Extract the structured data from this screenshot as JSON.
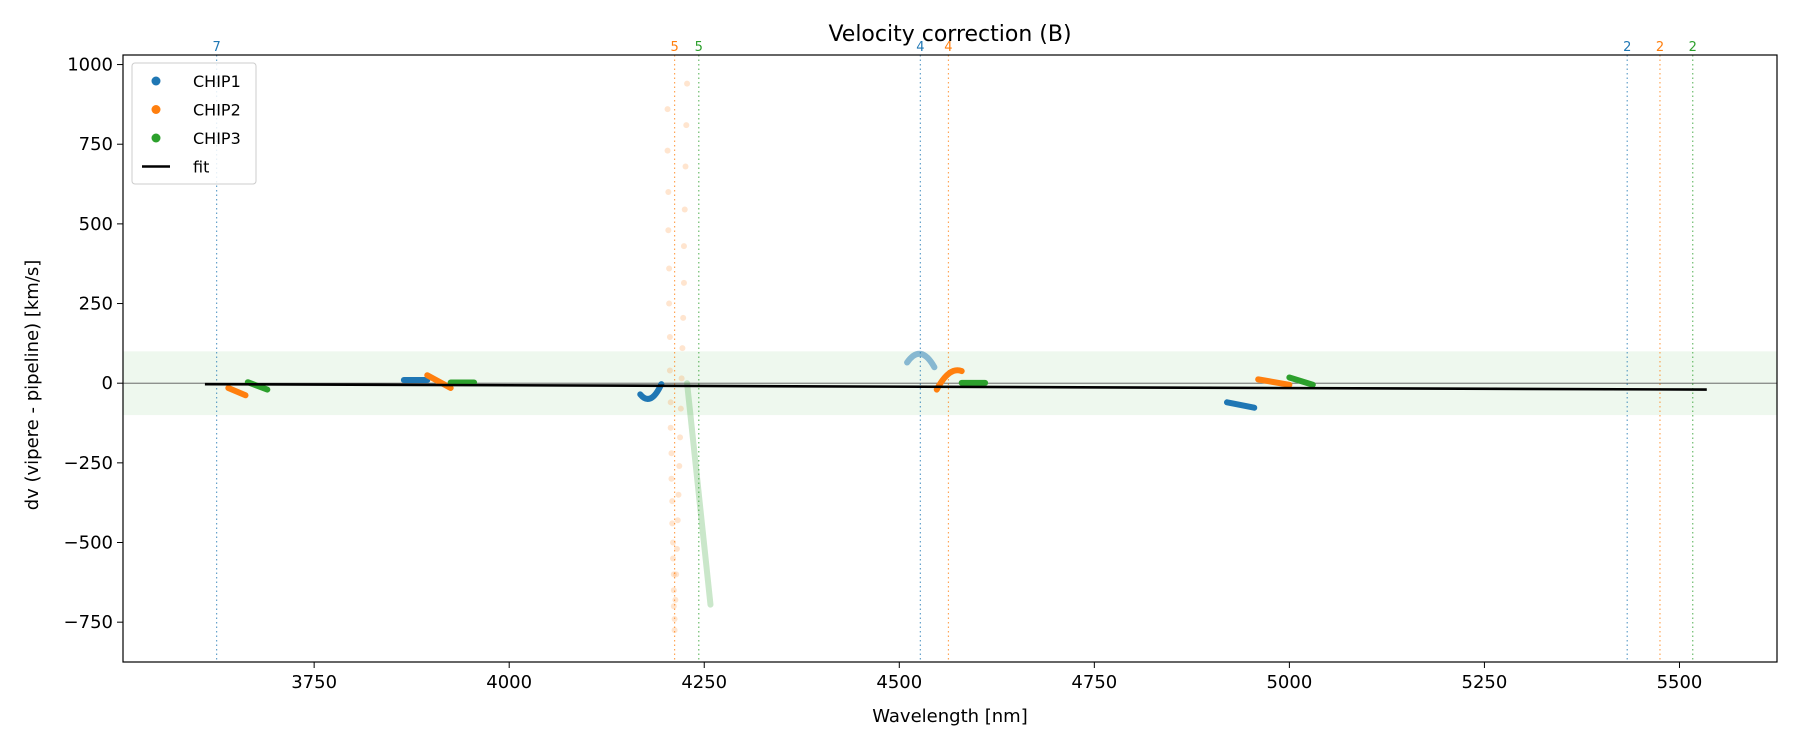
{
  "chart_data": {
    "type": "scatter",
    "title": "Velocity correction (B)",
    "xlabel": "Wavelength [nm]",
    "ylabel": "dv (vipere - pipeline) [km/s]",
    "xlim": [
      3505,
      5625
    ],
    "ylim": [
      -875,
      1030
    ],
    "xticks": [
      3750,
      4000,
      4250,
      4500,
      4750,
      5000,
      5250,
      5500
    ],
    "yticks": [
      -750,
      -500,
      -250,
      0,
      250,
      500,
      750,
      1000
    ],
    "xtick_labels": [
      "3750",
      "4000",
      "4250",
      "4500",
      "4750",
      "5000",
      "5250",
      "5500"
    ],
    "ytick_labels": [
      "−750",
      "−500",
      "−250",
      "0",
      "250",
      "500",
      "750",
      "1000"
    ],
    "band": [
      -100,
      100
    ],
    "band_color": "#2ca02c",
    "zero_line": 0,
    "legend_position": "upper-left",
    "colors": {
      "CHIP1": "#1f77b4",
      "CHIP2": "#ff7f0e",
      "CHIP3": "#2ca02c",
      "fit": "#000000"
    },
    "legend": [
      {
        "label": "CHIP1",
        "kind": "point",
        "series": "CHIP1"
      },
      {
        "label": "CHIP2",
        "kind": "point",
        "series": "CHIP2"
      },
      {
        "label": "CHIP3",
        "kind": "point",
        "series": "CHIP3"
      },
      {
        "label": "fit",
        "kind": "line",
        "series": "fit"
      }
    ],
    "fit": {
      "x": [
        3610,
        5535
      ],
      "y": [
        -3,
        -20
      ]
    },
    "segments": [
      {
        "series": "CHIP2",
        "alpha": 1,
        "x0": 3640,
        "y0": -15,
        "x1": 3662,
        "y1": -38,
        "curve": 0
      },
      {
        "series": "CHIP3",
        "alpha": 1,
        "x0": 3665,
        "y0": 3,
        "x1": 3690,
        "y1": -20,
        "curve": 0
      },
      {
        "series": "CHIP1",
        "alpha": 1,
        "x0": 3865,
        "y0": 10,
        "x1": 3895,
        "y1": 10,
        "curve": 0
      },
      {
        "series": "CHIP2",
        "alpha": 1,
        "x0": 3895,
        "y0": 25,
        "x1": 3925,
        "y1": -15,
        "curve": 0
      },
      {
        "series": "CHIP3",
        "alpha": 1,
        "x0": 3925,
        "y0": 2,
        "x1": 3955,
        "y1": 2,
        "curve": 0
      },
      {
        "series": "CHIP1",
        "alpha": 1,
        "x0": 4168,
        "y0": -35,
        "x1": 4195,
        "y1": -3,
        "curve": 18
      },
      {
        "series": "CHIP3",
        "alpha": 0.25,
        "x0": 4228,
        "y0": 0,
        "x1": 4258,
        "y1": -695,
        "curve": 0
      },
      {
        "series": "CHIP1",
        "alpha": 0.5,
        "x0": 4510,
        "y0": 65,
        "x1": 4545,
        "y1": 50,
        "curve": -22
      },
      {
        "series": "CHIP2",
        "alpha": 1,
        "x0": 4548,
        "y0": -20,
        "x1": 4580,
        "y1": 38,
        "curve": -14
      },
      {
        "series": "CHIP3",
        "alpha": 1,
        "x0": 4580,
        "y0": 1,
        "x1": 4610,
        "y1": 1,
        "curve": 0
      },
      {
        "series": "CHIP1",
        "alpha": 1,
        "x0": 4920,
        "y0": -60,
        "x1": 4955,
        "y1": -77,
        "curve": 0
      },
      {
        "series": "CHIP2",
        "alpha": 1,
        "x0": 4960,
        "y0": 12,
        "x1": 5000,
        "y1": -5,
        "curve": 0
      },
      {
        "series": "CHIP3",
        "alpha": 1,
        "x0": 5000,
        "y0": 18,
        "x1": 5030,
        "y1": -5,
        "curve": 0
      }
    ],
    "scatter_faint": [
      {
        "series": "CHIP2",
        "alpha": 0.2,
        "x": [
          4203,
          4203,
          4204,
          4204,
          4205,
          4205,
          4206,
          4206,
          4207,
          4207,
          4208,
          4208,
          4209,
          4209,
          4210,
          4210,
          4211,
          4211,
          4211,
          4212,
          4212
        ],
        "y": [
          860,
          730,
          600,
          480,
          360,
          250,
          145,
          40,
          -60,
          -140,
          -220,
          -300,
          -370,
          -440,
          -500,
          -550,
          -600,
          -650,
          -700,
          -740,
          -775
        ]
      },
      {
        "series": "CHIP2",
        "alpha": 0.2,
        "x": [
          4228,
          4227,
          4226,
          4225,
          4224,
          4224,
          4223,
          4222,
          4221,
          4220,
          4219,
          4218,
          4217,
          4216,
          4215,
          4214,
          4213
        ],
        "y": [
          940,
          810,
          680,
          545,
          430,
          315,
          205,
          110,
          15,
          -80,
          -170,
          -260,
          -350,
          -430,
          -520,
          -600,
          -680
        ]
      }
    ],
    "vlines": [
      {
        "x": 3625,
        "label": "7",
        "series": "CHIP1"
      },
      {
        "x": 4212,
        "label": "5",
        "series": "CHIP2"
      },
      {
        "x": 4243,
        "label": "5",
        "series": "CHIP3"
      },
      {
        "x": 4527,
        "label": "4",
        "series": "CHIP1"
      },
      {
        "x": 4563,
        "label": "4",
        "series": "CHIP2"
      },
      {
        "x": 5433,
        "label": "2",
        "series": "CHIP1"
      },
      {
        "x": 5475,
        "label": "2",
        "series": "CHIP2"
      },
      {
        "x": 5517,
        "label": "2",
        "series": "CHIP3"
      }
    ]
  }
}
